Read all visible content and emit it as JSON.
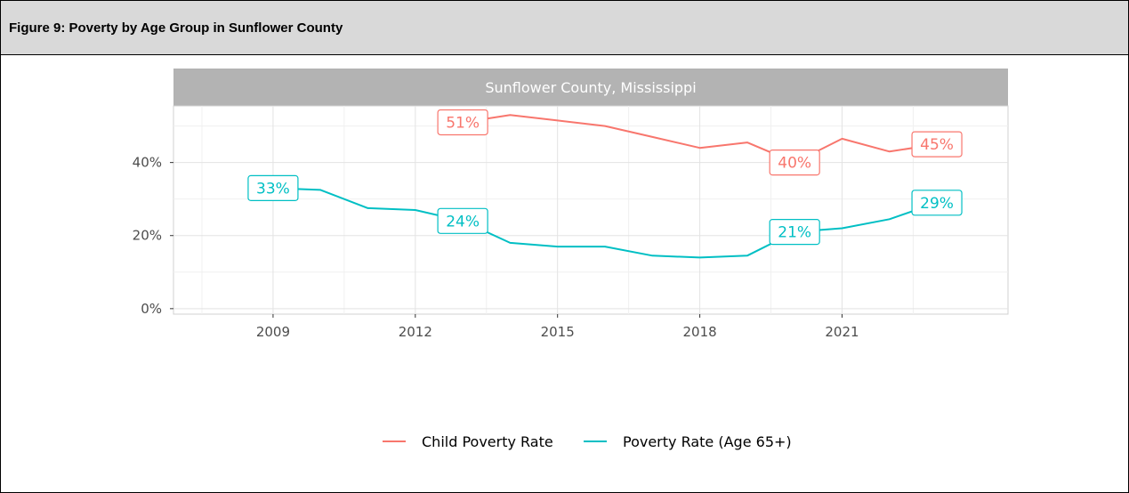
{
  "figure": {
    "caption": "Figure 9: Poverty by Age Group in Sunflower County"
  },
  "chart_data": {
    "type": "line",
    "facet_title": "Sunflower County, Mississippi",
    "x": [
      2009,
      2010,
      2011,
      2012,
      2013,
      2014,
      2015,
      2016,
      2017,
      2018,
      2019,
      2020,
      2021,
      2022,
      2023
    ],
    "x_ticks": [
      2009,
      2012,
      2015,
      2018,
      2021
    ],
    "x_tick_labels": [
      "2009",
      "2012",
      "2015",
      "2018",
      "2021"
    ],
    "xlim": [
      2006.9,
      2024.5
    ],
    "y_ticks": [
      0,
      20,
      40
    ],
    "y_tick_labels": [
      "0%",
      "20%",
      "40%"
    ],
    "ylim": [
      -1.5,
      55.5
    ],
    "grid": true,
    "legend_position": "bottom",
    "series": [
      {
        "name": "Child Poverty Rate",
        "color": "#F8766D",
        "x": [
          2013,
          2014,
          2015,
          2016,
          2017,
          2018,
          2019,
          2020,
          2021,
          2022,
          2023
        ],
        "values": [
          51,
          53,
          51.5,
          50,
          47,
          44,
          45.5,
          40,
          46.5,
          43,
          45
        ],
        "labels": [
          {
            "x": 2013,
            "text": "51%"
          },
          {
            "x": 2020,
            "text": "40%"
          },
          {
            "x": 2023,
            "text": "45%"
          }
        ]
      },
      {
        "name": "Poverty Rate (Age 65+)",
        "color": "#00BFC4",
        "x": [
          2009,
          2010,
          2011,
          2012,
          2013,
          2014,
          2015,
          2016,
          2017,
          2018,
          2019,
          2020,
          2021,
          2022,
          2023
        ],
        "values": [
          33,
          32.5,
          27.5,
          27,
          24,
          18,
          17,
          17,
          14.5,
          14,
          14.5,
          21,
          22,
          24.5,
          29
        ],
        "labels": [
          {
            "x": 2009,
            "text": "33%"
          },
          {
            "x": 2013,
            "text": "24%"
          },
          {
            "x": 2020,
            "text": "21%"
          },
          {
            "x": 2023,
            "text": "29%"
          }
        ]
      }
    ]
  }
}
